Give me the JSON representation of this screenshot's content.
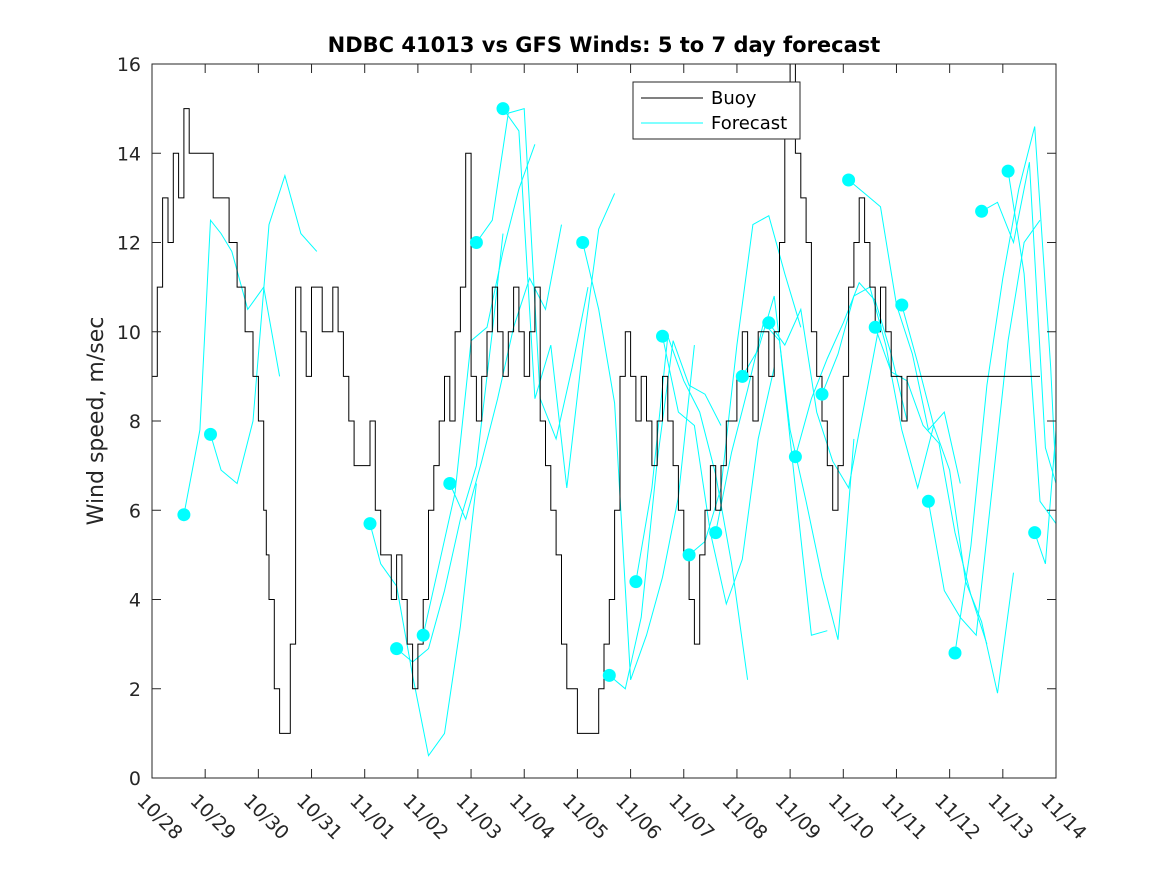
{
  "chart_data": {
    "type": "line",
    "title": "NDBC 41013 vs GFS Winds: 5 to 7 day forecast",
    "xlabel": "",
    "ylabel": "Wind speed, m/sec",
    "xlim": [
      0,
      17
    ],
    "ylim": [
      0,
      16
    ],
    "x_unit": "days since 10/28",
    "x_ticks": [
      0,
      1,
      2,
      3,
      4,
      5,
      6,
      7,
      8,
      9,
      10,
      11,
      12,
      13,
      14,
      15,
      16,
      17
    ],
    "x_tick_labels": [
      "10/28",
      "10/29",
      "10/30",
      "10/31",
      "11/01",
      "11/02",
      "11/03",
      "11/04",
      "11/05",
      "11/06",
      "11/07",
      "11/08",
      "11/09",
      "11/10",
      "11/11",
      "11/12",
      "11/13",
      "11/14"
    ],
    "y_ticks": [
      0,
      2,
      4,
      6,
      8,
      10,
      12,
      14,
      16
    ],
    "y_tick_labels": [
      "0",
      "2",
      "4",
      "6",
      "8",
      "10",
      "12",
      "14",
      "16"
    ],
    "grid": false,
    "legend": {
      "position": "top-right",
      "entries": [
        "Buoy",
        "Forecast"
      ]
    },
    "colors": {
      "buoy": "#000000",
      "forecast": "#00ffff",
      "axes": "#262626"
    },
    "series": [
      {
        "name": "Buoy",
        "style": "step-line",
        "x": [
          0,
          0.1,
          0.2,
          0.3,
          0.4,
          0.5,
          0.6,
          0.7,
          0.8,
          0.9,
          1,
          1.15,
          1.3,
          1.45,
          1.6,
          1.75,
          1.9,
          2.0,
          2.1,
          2.15,
          2.2,
          2.3,
          2.4,
          2.5,
          2.6,
          2.7,
          2.8,
          2.9,
          3,
          3.1,
          3.2,
          3.3,
          3.4,
          3.5,
          3.6,
          3.7,
          3.8,
          3.9,
          4,
          4.1,
          4.2,
          4.3,
          4.4,
          4.5,
          4.6,
          4.7,
          4.8,
          4.9,
          5,
          5.1,
          5.2,
          5.3,
          5.4,
          5.5,
          5.6,
          5.7,
          5.8,
          5.9,
          6,
          6.1,
          6.2,
          6.3,
          6.4,
          6.5,
          6.6,
          6.7,
          6.8,
          6.9,
          7,
          7.1,
          7.2,
          7.3,
          7.4,
          7.5,
          7.6,
          7.7,
          7.8,
          7.9,
          8,
          8.1,
          8.2,
          8.3,
          8.4,
          8.5,
          8.6,
          8.7,
          8.8,
          8.9,
          9,
          9.1,
          9.2,
          9.3,
          9.4,
          9.5,
          9.6,
          9.7,
          9.8,
          9.9,
          10,
          10.1,
          10.2,
          10.3,
          10.4,
          10.5,
          10.6,
          10.7,
          10.8,
          10.9,
          11,
          11.1,
          11.2,
          11.3,
          11.4,
          11.5,
          11.6,
          11.7,
          11.8,
          11.9,
          12,
          12.1,
          12.2,
          12.3,
          12.4,
          12.5,
          12.6,
          12.7,
          12.8,
          12.9,
          13,
          13.1,
          13.2,
          13.3,
          13.4,
          13.5,
          13.6,
          13.7,
          13.8,
          13.9,
          14,
          14.1,
          14.2,
          14.3,
          14.4,
          14.5,
          14.6,
          14.7,
          14.8,
          14.9,
          15,
          15.1,
          15.2,
          15.3,
          15.4,
          15.5,
          15.6,
          15.7,
          15.8,
          15.9,
          16,
          16.1,
          16.2,
          16.3,
          16.4,
          16.5,
          16.6,
          16.7
        ],
        "values": [
          9,
          11,
          13,
          12,
          14,
          13,
          15,
          14,
          14,
          14,
          14,
          13,
          13,
          12,
          11,
          10,
          9,
          8,
          6,
          5,
          4,
          2,
          1,
          1,
          3,
          11,
          10,
          9,
          11,
          11,
          10,
          10,
          11,
          10,
          9,
          8,
          7,
          7,
          7,
          8,
          6,
          5,
          5,
          4,
          5,
          4,
          3,
          2,
          3,
          4,
          6,
          7,
          8,
          9,
          8,
          10,
          11,
          14,
          9,
          8,
          9,
          10,
          11,
          10,
          9,
          10,
          11,
          10,
          9,
          10,
          11,
          8,
          7,
          6,
          5,
          3,
          2,
          2,
          1,
          1,
          1,
          1,
          2,
          3,
          4,
          6,
          9,
          10,
          9,
          8,
          9,
          8,
          7,
          8,
          9,
          8,
          7,
          6,
          5,
          4,
          3,
          5,
          6,
          7,
          6,
          7,
          8,
          8,
          9,
          10,
          9,
          8,
          10,
          10,
          9,
          10,
          12,
          15,
          16,
          14,
          13,
          12,
          10,
          9,
          8,
          7,
          6,
          7,
          9,
          11,
          12,
          13,
          12,
          11,
          10,
          11,
          10,
          9,
          9,
          8,
          9,
          9,
          9,
          9,
          9,
          9,
          9,
          9,
          9,
          9,
          9,
          9,
          9,
          9,
          9,
          9,
          9,
          9,
          9,
          9,
          9,
          9,
          9,
          9,
          9,
          9
        ]
      },
      {
        "name": "Forecast",
        "style": "line-with-start-markers",
        "segments": [
          {
            "x": [
              0.6,
              0.9,
              1.1,
              1.3,
              1.5,
              1.8,
              2.1,
              2.4
            ],
            "values": [
              5.9,
              7.8,
              12.5,
              12.2,
              11.8,
              10.5,
              11,
              9
            ]
          },
          {
            "x": [
              1.1,
              1.3,
              1.6,
              1.9,
              2.2,
              2.5,
              2.8,
              3.1
            ],
            "values": [
              7.7,
              6.9,
              6.6,
              8,
              12.4,
              13.5,
              12.2,
              11.8
            ]
          },
          {
            "x": [
              4.1,
              4.3,
              4.6,
              4.9,
              5.2,
              5.5,
              5.8,
              6.1
            ],
            "values": [
              5.7,
              4.8,
              4.3,
              2.3,
              0.5,
              1,
              3.4,
              6.6
            ]
          },
          {
            "x": [
              4.6,
              4.9,
              5.2,
              5.5,
              5.8,
              6.1,
              6.4,
              6.6
            ],
            "values": [
              2.9,
              2.6,
              2.9,
              4.2,
              5.8,
              7,
              10,
              12.2
            ]
          },
          {
            "x": [
              5.1,
              5.4,
              5.7,
              6.0,
              6.3,
              6.6,
              6.9,
              7.2
            ],
            "values": [
              3.2,
              4.8,
              6.4,
              9.8,
              10.1,
              11.8,
              13.2,
              14.2
            ]
          },
          {
            "x": [
              5.6,
              5.9,
              6.2,
              6.5,
              6.8,
              7.1,
              7.4,
              7.7
            ],
            "values": [
              6.6,
              5.8,
              7.1,
              8.5,
              10.1,
              11.2,
              10.5,
              12.4
            ]
          },
          {
            "x": [
              6.1,
              6.4,
              6.7,
              7.0,
              7.3,
              7.6,
              7.9,
              8.2
            ],
            "values": [
              12,
              12.5,
              14.9,
              15,
              8.5,
              7.6,
              9.2,
              11
            ]
          },
          {
            "x": [
              6.6,
              6.9,
              7.2,
              7.5,
              7.8,
              8.1,
              8.4,
              8.7
            ],
            "values": [
              15,
              14.5,
              8.5,
              9.7,
              6.5,
              9.6,
              12.3,
              13.1
            ]
          },
          {
            "x": [
              8.1,
              8.4,
              8.7,
              9.0,
              9.3,
              9.6,
              9.9,
              10.2
            ],
            "values": [
              12,
              10.5,
              8.4,
              2.2,
              3.2,
              4.5,
              6.3,
              9.7
            ]
          },
          {
            "x": [
              8.6,
              8.9,
              9.2,
              9.5,
              9.8,
              10.1,
              10.4,
              10.7
            ],
            "values": [
              2.3,
              2,
              3.6,
              7.1,
              9.8,
              8.8,
              8.6,
              7.9
            ]
          },
          {
            "x": [
              9.1,
              9.4,
              9.7,
              10.0,
              10.3,
              10.6,
              10.9,
              11.2
            ],
            "values": [
              4.4,
              6.5,
              9.9,
              8.9,
              8.2,
              6.8,
              4.8,
              2.2
            ]
          },
          {
            "x": [
              9.6,
              9.9,
              10.2,
              10.5,
              10.8,
              11.1,
              11.4,
              11.7
            ],
            "values": [
              9.9,
              8.2,
              7.9,
              5.5,
              3.9,
              4.9,
              7.6,
              9.2
            ]
          },
          {
            "x": [
              10.1,
              10.4,
              10.7,
              11.0,
              11.3,
              11.6,
              11.9,
              12.2
            ],
            "values": [
              5,
              5.3,
              6.5,
              9.7,
              12.4,
              12.6,
              11.3,
              10.1
            ]
          },
          {
            "x": [
              10.6,
              10.9,
              11.2,
              11.5,
              11.8,
              12.1,
              12.4,
              12.7
            ],
            "values": [
              5.5,
              7.3,
              8.7,
              10.2,
              9.8,
              6.5,
              3.2,
              3.3
            ]
          },
          {
            "x": [
              11.1,
              11.4,
              11.7,
              12.0,
              12.3,
              12.6,
              12.9,
              13.2
            ],
            "values": [
              9,
              9.6,
              10.8,
              7.8,
              6.2,
              4.5,
              3.1,
              7.6
            ]
          },
          {
            "x": [
              11.6,
              11.9,
              12.2,
              12.5,
              12.8,
              13.1,
              13.4,
              13.7
            ],
            "values": [
              10.2,
              9.7,
              10.5,
              8.2,
              7.1,
              6.5,
              8.4,
              10.3
            ]
          },
          {
            "x": [
              12.1,
              12.4,
              12.7,
              13.0,
              13.3,
              13.6,
              13.9,
              14.2
            ],
            "values": [
              7.2,
              8.5,
              9.4,
              10.2,
              11.1,
              10.7,
              9.5,
              8
            ]
          },
          {
            "x": [
              12.6,
              12.9,
              13.2,
              13.5,
              13.8,
              14.1,
              14.4,
              14.7
            ],
            "values": [
              8.6,
              9.5,
              10.8,
              11,
              9.7,
              7.8,
              6.5,
              7.9
            ]
          },
          {
            "x": [
              13.1,
              13.4,
              13.7,
              14.0,
              14.3,
              14.6,
              14.9,
              15.2
            ],
            "values": [
              13.4,
              13.1,
              12.8,
              10.6,
              9.5,
              7.8,
              8.2,
              6.6
            ]
          },
          {
            "x": [
              13.6,
              13.9,
              14.2,
              14.5,
              14.8,
              15.1,
              15.4,
              15.7
            ],
            "values": [
              10.1,
              9.1,
              8.9,
              7.9,
              7.5,
              5.5,
              4.1,
              3
            ]
          },
          {
            "x": [
              14.1,
              14.4,
              14.7,
              15.0,
              15.3,
              15.6,
              15.9,
              16.2
            ],
            "values": [
              10.6,
              9.3,
              7.9,
              6.9,
              4.4,
              3.5,
              1.9,
              4.6
            ]
          },
          {
            "x": [
              14.6,
              14.9,
              15.2,
              15.5,
              15.8,
              16.1,
              16.4,
              16.7
            ],
            "values": [
              6.2,
              4.2,
              3.6,
              3.2,
              6.5,
              9.8,
              12,
              12.5
            ]
          },
          {
            "x": [
              15.1,
              15.4,
              15.7,
              16.0,
              16.3,
              16.6,
              16.9,
              17.0
            ],
            "values": [
              2.8,
              5.2,
              8.8,
              11.2,
              13.2,
              14.6,
              9.2,
              6.7
            ]
          },
          {
            "x": [
              15.6,
              15.9,
              16.2,
              16.5,
              16.8,
              17.0
            ],
            "values": [
              12.7,
              12.9,
              12,
              13.8,
              7.4,
              6.6
            ]
          },
          {
            "x": [
              16.1,
              16.4,
              16.7,
              17.0
            ],
            "values": [
              13.6,
              11.3,
              6.2,
              5.7
            ]
          },
          {
            "x": [
              16.6,
              16.8,
              17.0
            ],
            "values": [
              5.5,
              4.8,
              7.8
            ]
          }
        ]
      }
    ]
  }
}
